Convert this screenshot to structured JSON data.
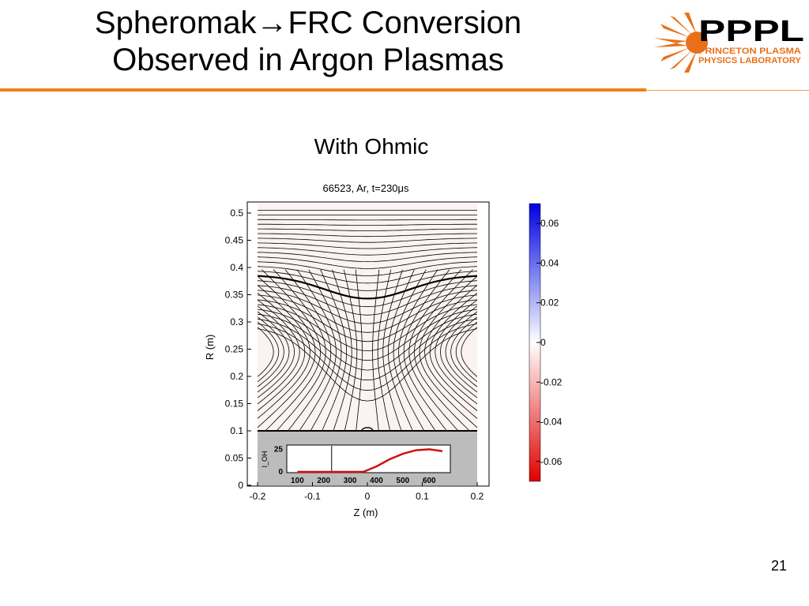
{
  "slide": {
    "title_line1": "Spheromak→FRC Conversion",
    "title_line2": "Observed in Argon Plasmas",
    "subtitle": "With Ohmic",
    "page_number": "21"
  },
  "logo": {
    "name": "PPPL",
    "text_line1": "PRINCETON PLASMA",
    "text_line2": "PHYSICS LABORATORY",
    "color": "#e8701a"
  },
  "accent_color": "#f07f18",
  "plot": {
    "title": "66523, Ar, t=230μs",
    "xlabel": "Z (m)",
    "ylabel": "R (m)",
    "xticks": [
      "-0.2",
      "-0.1",
      "0",
      "0.1",
      "0.2"
    ],
    "yticks": [
      "0",
      "0.05",
      "0.1",
      "0.15",
      "0.2",
      "0.25",
      "0.3",
      "0.35",
      "0.4",
      "0.45",
      "0.5"
    ],
    "xlim": [
      -0.2,
      0.2
    ],
    "ylim": [
      0,
      0.5
    ],
    "colorbar_ticks": [
      "0.06",
      "0.04",
      "0.02",
      "0",
      "-0.02",
      "-0.04",
      "-0.06"
    ],
    "inset": {
      "ylabel": "I_OH",
      "yticks": [
        "0",
        "25"
      ],
      "xticks": [
        "100",
        "200",
        "300",
        "400",
        "500",
        "600"
      ],
      "marker_x": 230
    }
  },
  "chart_data": {
    "type": "heatmap",
    "title": "66523, Ar, t=230μs",
    "xlabel": "Z (m)",
    "ylabel": "R (m)",
    "xlim": [
      -0.2,
      0.2
    ],
    "ylim": [
      0,
      0.5
    ],
    "colorbar_range": [
      -0.07,
      0.07
    ],
    "inset": {
      "type": "line",
      "x": [
        100,
        200,
        300,
        350,
        400,
        450,
        500,
        550,
        600,
        650
      ],
      "y": [
        0,
        0,
        0,
        0,
        6,
        14,
        20,
        24,
        25,
        23
      ],
      "marker_x": 230
    }
  }
}
